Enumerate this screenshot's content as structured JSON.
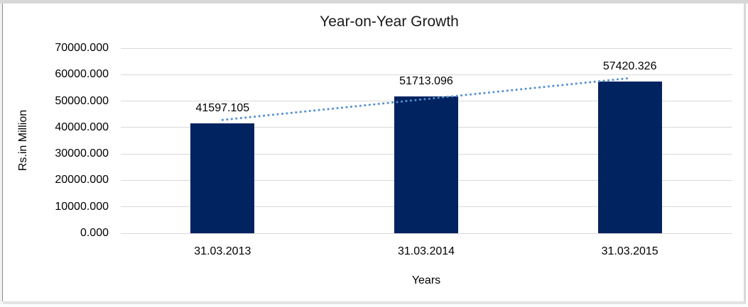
{
  "chart_data": {
    "type": "bar",
    "title": "Year-on-Year Growth",
    "xlabel": "Years",
    "ylabel": "Rs.in Million",
    "categories": [
      "31.03.2013",
      "31.03.2014",
      "31.03.2015"
    ],
    "values": [
      41597.105,
      51713.096,
      57420.326
    ],
    "data_labels": [
      "41597.105",
      "51713.096",
      "57420.326"
    ],
    "ylim": [
      0,
      70000
    ],
    "y_tick_step": 10000,
    "y_tick_labels": [
      "0.000",
      "10000.000",
      "20000.000",
      "30000.000",
      "40000.000",
      "50000.000",
      "60000.000",
      "70000.000"
    ],
    "grid": true,
    "legend": "none",
    "bar_color": "#01235f",
    "gridline_color": "#d9d9d9",
    "trendline": {
      "type": "linear",
      "style": "dotted",
      "color": "#5491cf"
    }
  }
}
